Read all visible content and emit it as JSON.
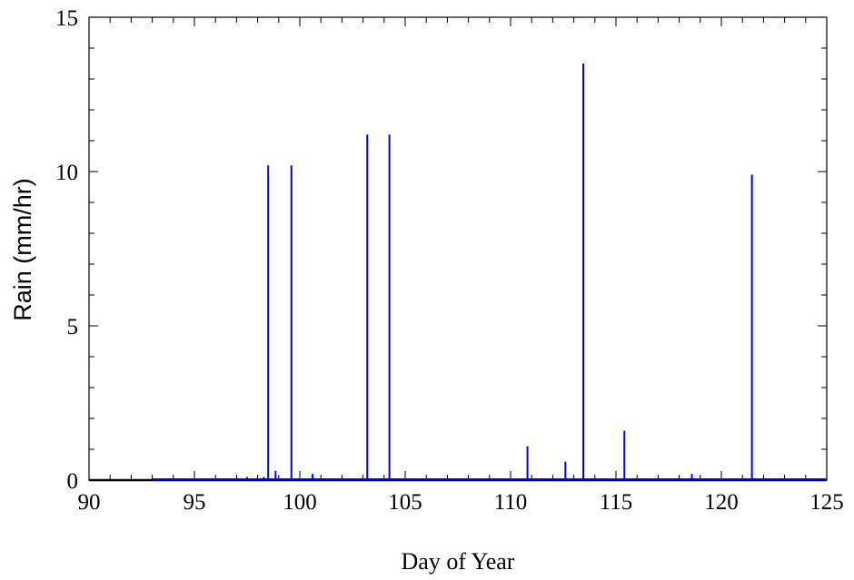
{
  "chart_data": {
    "type": "line",
    "title": "",
    "xlabel": "Day of Year",
    "ylabel": "Rain (mm/hr)",
    "xlim": [
      90,
      125
    ],
    "ylim": [
      0,
      15
    ],
    "x_ticks": [
      "90",
      "95",
      "100",
      "105",
      "110",
      "115",
      "120",
      "125"
    ],
    "y_ticks": [
      "0",
      "5",
      "10",
      "15"
    ],
    "x_minor_step": 1,
    "y_minor_step": 1,
    "grid": false,
    "baseline_start": 93,
    "series": [
      {
        "color": "#0000ff",
        "points": [
          {
            "x": 97.5,
            "y": 0.1
          },
          {
            "x": 98.3,
            "y": 0.1
          },
          {
            "x": 98.5,
            "y": 10.2
          },
          {
            "x": 98.85,
            "y": 0.3
          },
          {
            "x": 99.6,
            "y": 10.2
          },
          {
            "x": 100.6,
            "y": 0.2
          },
          {
            "x": 103.2,
            "y": 11.2
          },
          {
            "x": 104.25,
            "y": 11.2
          },
          {
            "x": 110.8,
            "y": 1.1
          },
          {
            "x": 112.6,
            "y": 0.6
          },
          {
            "x": 113.45,
            "y": 13.5
          },
          {
            "x": 115.4,
            "y": 1.6
          },
          {
            "x": 118.6,
            "y": 0.2
          },
          {
            "x": 121.45,
            "y": 9.9
          }
        ]
      }
    ]
  }
}
